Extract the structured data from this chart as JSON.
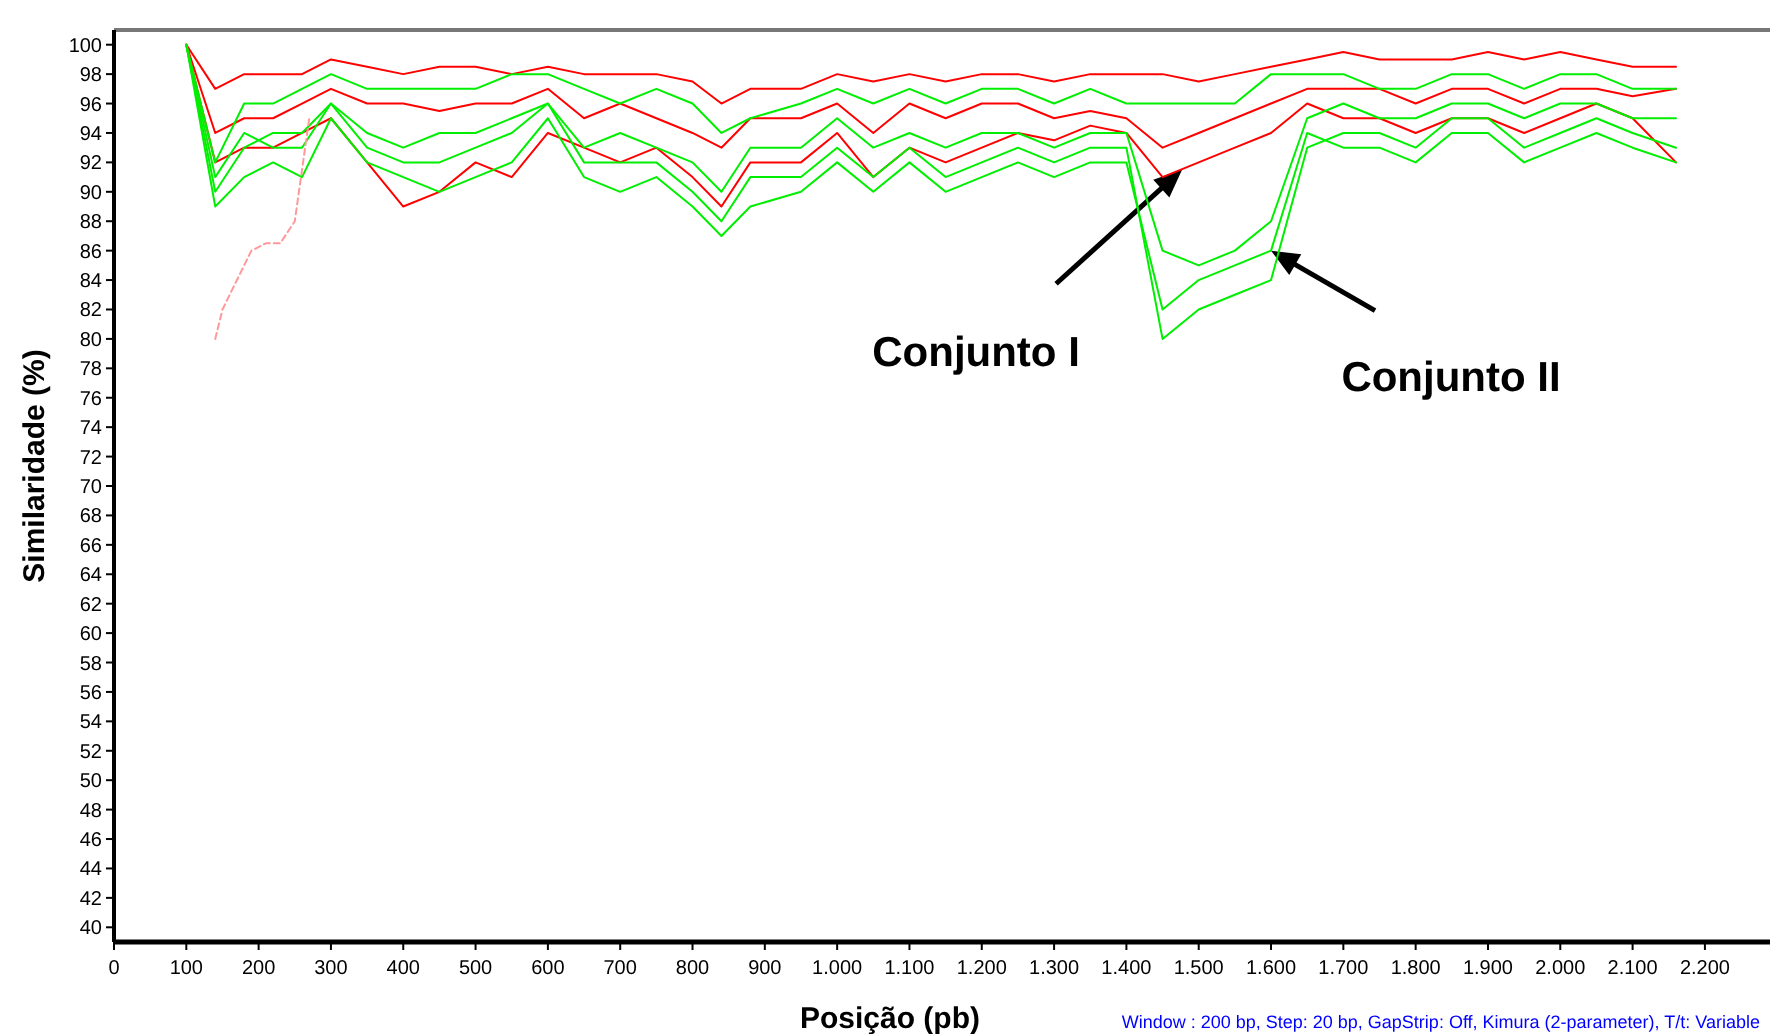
{
  "chart_data": {
    "type": "line",
    "xlabel": "Posição (pb)",
    "ylabel": "Similaridade (%)",
    "x": [
      100,
      140,
      180,
      220,
      260,
      300,
      350,
      400,
      450,
      500,
      550,
      600,
      650,
      700,
      750,
      800,
      840,
      880,
      950,
      1000,
      1050,
      1100,
      1150,
      1200,
      1250,
      1300,
      1350,
      1400,
      1450,
      1500,
      1550,
      1600,
      1650,
      1700,
      1750,
      1800,
      1850,
      1900,
      1950,
      2000,
      2050,
      2100,
      2160
    ],
    "xlim": [
      0,
      2290
    ],
    "ylim": [
      39,
      101
    ],
    "xticks": [
      0,
      100,
      200,
      300,
      400,
      500,
      600,
      700,
      800,
      900,
      {
        "value": 1000,
        "label": "1.000"
      },
      {
        "value": 1100,
        "label": "1.100"
      },
      {
        "value": 1200,
        "label": "1.200"
      },
      {
        "value": 1300,
        "label": "1.300"
      },
      {
        "value": 1400,
        "label": "1.400"
      },
      {
        "value": 1500,
        "label": "1.500"
      },
      {
        "value": 1600,
        "label": "1.600"
      },
      {
        "value": 1700,
        "label": "1.700"
      },
      {
        "value": 1800,
        "label": "1.800"
      },
      {
        "value": 1900,
        "label": "1.900"
      },
      {
        "value": 2000,
        "label": "2.000"
      },
      {
        "value": 2100,
        "label": "2.100"
      },
      {
        "value": 2200,
        "label": "2.200"
      }
    ],
    "yticks": [
      40,
      42,
      44,
      46,
      48,
      50,
      52,
      54,
      56,
      58,
      60,
      62,
      64,
      66,
      68,
      70,
      72,
      74,
      76,
      78,
      80,
      82,
      84,
      86,
      88,
      90,
      92,
      94,
      96,
      98,
      100
    ],
    "grid": false,
    "marker": "none",
    "line_style": "solid",
    "series": [
      {
        "color": "#ff0000",
        "values": [
          100,
          97,
          98,
          98,
          98,
          99,
          98.5,
          98,
          98.5,
          98.5,
          98,
          98.5,
          98,
          98,
          98,
          97.5,
          96,
          97,
          97,
          98,
          97.5,
          98,
          97.5,
          98,
          98,
          97.5,
          98,
          98,
          98,
          97.5,
          98,
          98.5,
          99,
          99.5,
          99,
          99,
          99,
          99.5,
          99,
          99.5,
          99,
          98.5,
          98.5
        ]
      },
      {
        "color": "#ff0000",
        "values": [
          100,
          94,
          95,
          95,
          96,
          97,
          96,
          96,
          95.5,
          96,
          96,
          97,
          95,
          96,
          95,
          94,
          93,
          95,
          95,
          96,
          94,
          96,
          95,
          96,
          96,
          95,
          95.5,
          95,
          93,
          94,
          95,
          96,
          97,
          97,
          97,
          96,
          97,
          97,
          96,
          97,
          97,
          96.5,
          97
        ]
      },
      {
        "color": "#ff0000",
        "values": [
          100,
          92,
          93,
          93,
          94,
          95,
          92,
          89,
          90,
          92,
          91,
          94,
          93,
          92,
          93,
          91,
          89,
          92,
          92,
          94,
          91,
          93,
          92,
          93,
          94,
          93.5,
          94.5,
          94,
          91,
          92,
          93,
          94,
          96,
          95,
          95,
          94,
          95,
          95,
          94,
          95,
          96,
          95,
          92
        ]
      },
      {
        "color": "#00ee00",
        "values": [
          100,
          92,
          96,
          96,
          97,
          98,
          97,
          97,
          97,
          97,
          98,
          98,
          97,
          96,
          97,
          96,
          94,
          95,
          96,
          97,
          96,
          97,
          96,
          97,
          97,
          96,
          97,
          96,
          96,
          96,
          96,
          98,
          98,
          98,
          97,
          97,
          98,
          98,
          97,
          98,
          98,
          97,
          97
        ]
      },
      {
        "color": "#00ee00",
        "values": [
          100,
          90,
          93,
          94,
          94,
          96,
          94,
          93,
          94,
          94,
          95,
          96,
          93,
          94,
          93,
          92,
          90,
          93,
          93,
          95,
          93,
          94,
          93,
          94,
          94,
          93,
          94,
          94,
          86,
          85,
          86,
          88,
          95,
          96,
          95,
          95,
          96,
          96,
          95,
          96,
          96,
          95,
          95
        ]
      },
      {
        "color": "#00ee00",
        "values": [
          100,
          89,
          91,
          92,
          91,
          95,
          92,
          91,
          90,
          91,
          92,
          95,
          91,
          90,
          91,
          89,
          87,
          89,
          90,
          92,
          90,
          92,
          90,
          91,
          92,
          91,
          92,
          92,
          82,
          84,
          85,
          86,
          94,
          93,
          93,
          92,
          94,
          94,
          92,
          93,
          94,
          93,
          92
        ]
      },
      {
        "color": "#00ee00",
        "values": [
          100,
          91,
          94,
          93,
          93,
          96,
          93,
          92,
          92,
          93,
          94,
          96,
          92,
          92,
          92,
          90,
          88,
          91,
          91,
          93,
          91,
          93,
          91,
          92,
          93,
          92,
          93,
          93,
          80,
          82,
          83,
          84,
          93,
          94,
          94,
          93,
          95,
          95,
          93,
          94,
          95,
          94,
          93
        ]
      },
      {
        "color": "#ff9999",
        "line_style": "dashed",
        "x": [
          140,
          150,
          170,
          190,
          210,
          230,
          250,
          270
        ],
        "values": [
          80,
          82,
          84,
          86,
          86.5,
          86.5,
          88,
          95
        ]
      }
    ],
    "annotations": [
      {
        "text": "Conjunto I",
        "x": 1477,
        "y": 91.5
      },
      {
        "text": "Conjunto II",
        "x": 1600,
        "y": 86
      },
      "Window : 200 bp, Step: 20 bp, GapStrip: Off, Kimura (2-parameter), T/t: Variable"
    ]
  }
}
